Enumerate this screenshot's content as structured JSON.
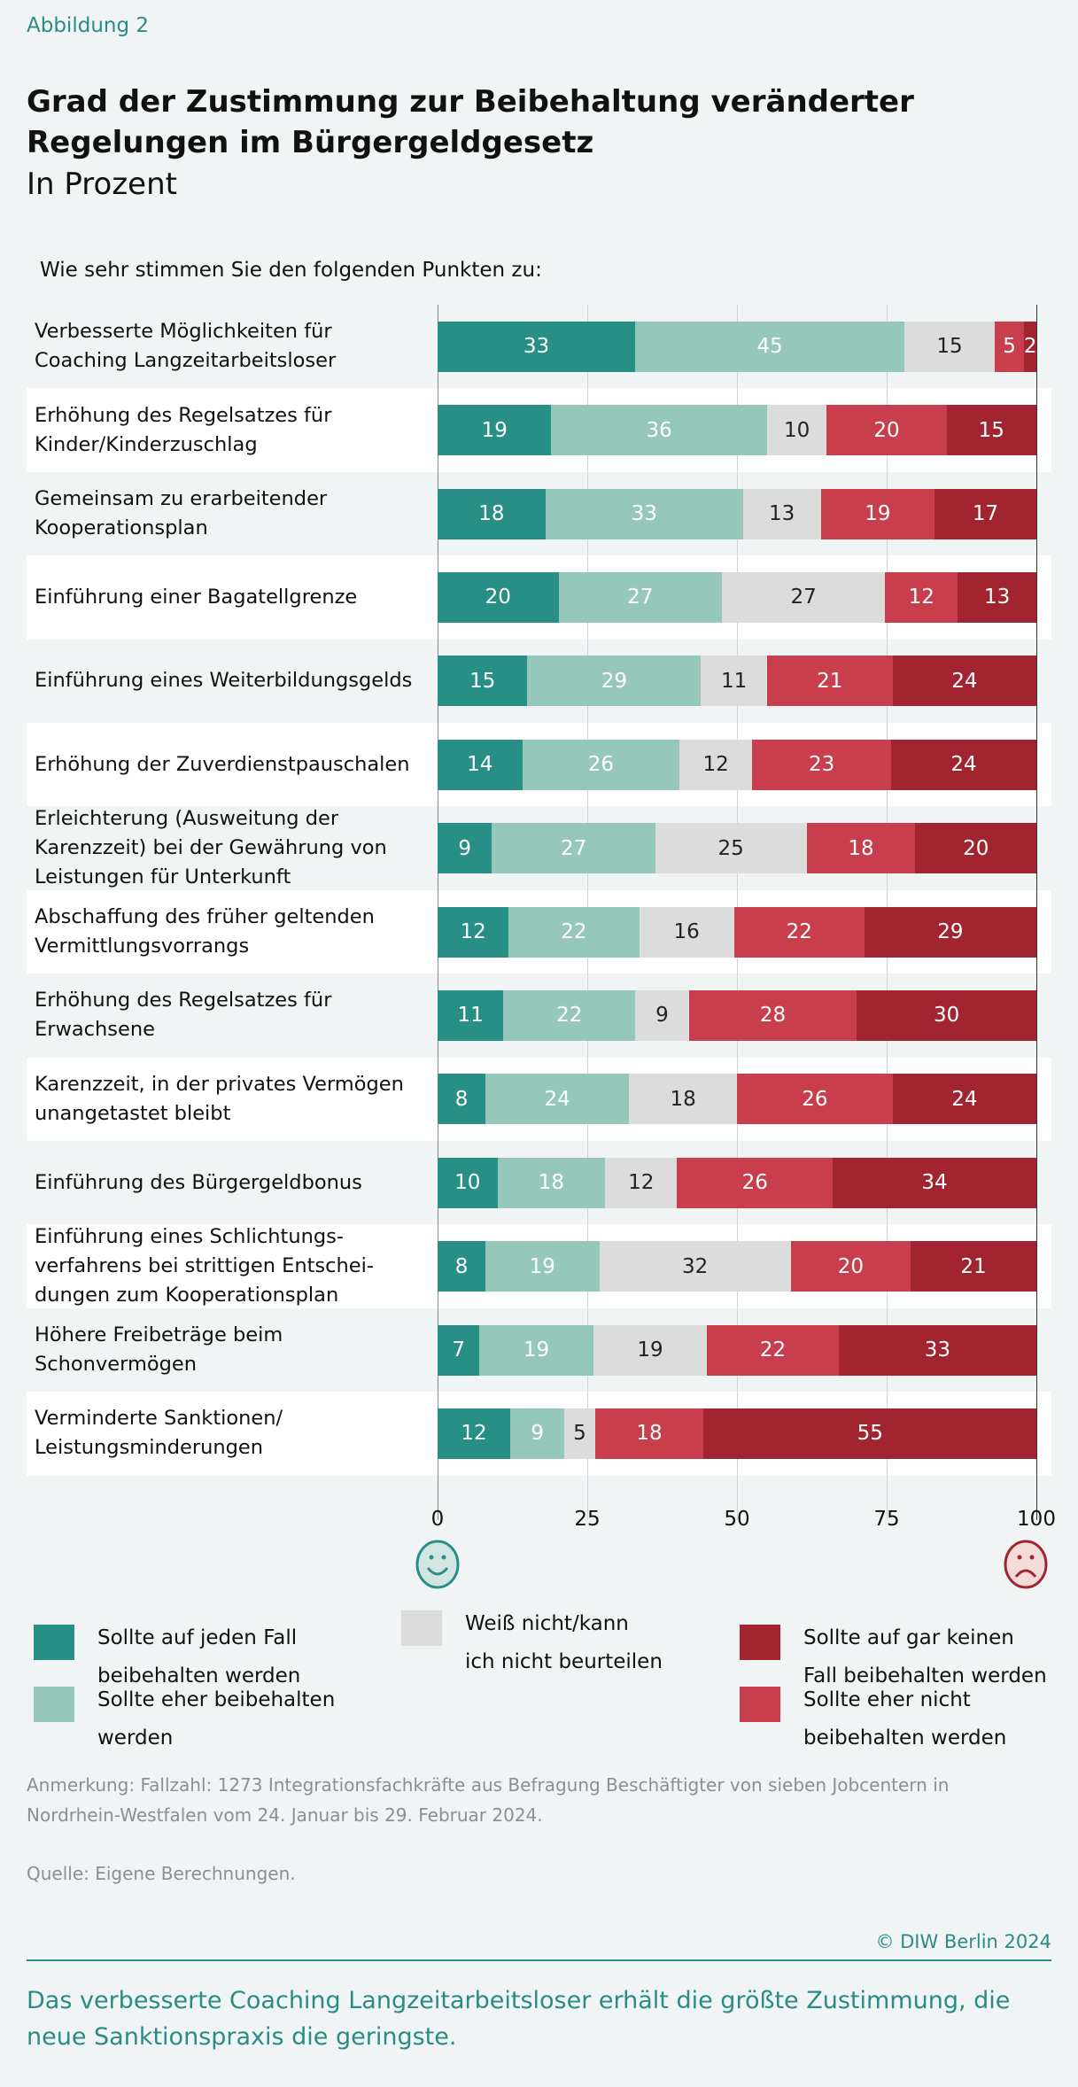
{
  "figure_label": "Abbildung 2",
  "note": "Anmerkung: Fallzahl: 1273 Integrationsfachkräfte aus Befragung Beschäftigter von sieben Jobcentern in Nordrhein-Westfalen vom 24. Januar bis 29. Februar 2024.",
  "source": "Quelle: Eigene Berechnungen.",
  "copyright": "© DIW Berlin 2024",
  "takeaway": "Das verbesserte Coaching Langzeitarbeitsloser erhält die größte Zustimmung, die neue Sanktionspraxis die geringste.",
  "chart_data": {
    "type": "bar",
    "orientation": "horizontal-stacked",
    "title": "Grad der Zustimmung zur Beibehaltung veränderter Regelungen im Bürgergeldgesetz",
    "subtitle": "In Prozent",
    "question": "Wie sehr stimmen Sie den folgenden Punkten zu:",
    "xlim": [
      0,
      100
    ],
    "xticks": [
      "0",
      "25",
      "50",
      "75",
      "100"
    ],
    "grid": true,
    "legend_position": "bottom",
    "axis_icons": {
      "start": "smiley-happy-icon",
      "end": "smiley-sad-icon"
    },
    "categories": [
      "Verbesserte Möglichkeiten für\nCoaching Langzeitarbeitsloser",
      "Erhöhung des Regelsatzes für\nKinder/Kinderzuschlag",
      "Gemeinsam zu erarbeitender\nKooperationsplan",
      "Einführung einer Bagatellgrenze",
      "Einführung eines Weiterbildungsgelds",
      "Erhöhung der Zuverdienstpauschalen",
      "Erleichterung (Ausweitung der\nKarenzzeit) bei der Gewährung von\nLeistungen für Unterkunft",
      "Abschaffung des früher geltenden\nVermittlungsvorrangs",
      "Erhöhung des Regelsatzes für\nErwachsene",
      "Karenzzeit, in der privates Vermögen\nunangetastet bleibt",
      "Einführung des Bürgergeldbonus",
      "Einführung eines Schlichtungs-\nverfahrens bei strittigen Entschei-\ndungen zum Kooperationsplan",
      "Höhere Freibeträge beim\nSchonvermögen",
      "Verminderte Sanktionen/\nLeistungsminderungen"
    ],
    "series": [
      {
        "name": "Sollte auf jeden Fall\nbeibehalten werden",
        "color": "#288f87",
        "text_color": "#ffffff",
        "values": [
          33,
          19,
          18,
          20,
          15,
          14,
          9,
          12,
          11,
          8,
          10,
          8,
          7,
          12
        ]
      },
      {
        "name": "Sollte eher beibehalten\nwerden",
        "color": "#96c7bb",
        "text_color": "#ffffff",
        "values": [
          45,
          36,
          33,
          27,
          29,
          26,
          27,
          22,
          22,
          24,
          18,
          19,
          19,
          9
        ]
      },
      {
        "name": "Weiß nicht/kann\nich nicht beurteilen",
        "color": "#dcdcdc",
        "text_color": "#222222",
        "values": [
          15,
          10,
          13,
          27,
          11,
          12,
          25,
          16,
          9,
          18,
          12,
          32,
          19,
          5
        ]
      },
      {
        "name": "Sollte eher nicht\nbeibehalten werden",
        "color": "#c83e4d",
        "text_color": "#ffffff",
        "values": [
          5,
          20,
          19,
          12,
          21,
          23,
          18,
          22,
          28,
          26,
          26,
          20,
          22,
          18
        ]
      },
      {
        "name": "Sollte auf gar keinen\nFall beibehalten werden",
        "color": "#a22430",
        "text_color": "#ffffff",
        "values": [
          2,
          15,
          17,
          13,
          24,
          24,
          20,
          29,
          30,
          24,
          34,
          21,
          33,
          55
        ]
      }
    ]
  }
}
